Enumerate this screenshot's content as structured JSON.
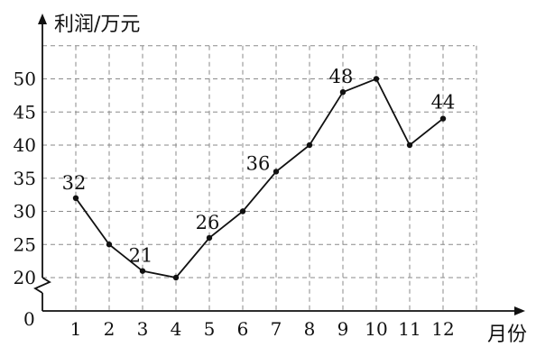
{
  "chart_data": {
    "type": "line",
    "ylabel": "利润/万元",
    "xlabel": "月份",
    "origin_label": "0",
    "y_axis_break": true,
    "grid": true,
    "x": [
      1,
      2,
      3,
      4,
      5,
      6,
      7,
      8,
      9,
      10,
      11,
      12
    ],
    "y": [
      32,
      25,
      21,
      20,
      26,
      30,
      36,
      40,
      48,
      50,
      40,
      44
    ],
    "x_ticks": [
      "1",
      "2",
      "3",
      "4",
      "5",
      "6",
      "7",
      "8",
      "9",
      "10",
      "11",
      "12"
    ],
    "y_ticks": [
      "20",
      "25",
      "30",
      "35",
      "40",
      "45",
      "50"
    ],
    "ylim": [
      20,
      55
    ],
    "data_labels": [
      {
        "x": 1,
        "y": 32,
        "text": "32"
      },
      {
        "x": 3,
        "y": 21,
        "text": "21"
      },
      {
        "x": 5,
        "y": 26,
        "text": "26"
      },
      {
        "x": 7,
        "y": 36,
        "text": "36"
      },
      {
        "x": 9,
        "y": 48,
        "text": "48"
      },
      {
        "x": 12,
        "y": 44,
        "text": "44"
      }
    ]
  }
}
